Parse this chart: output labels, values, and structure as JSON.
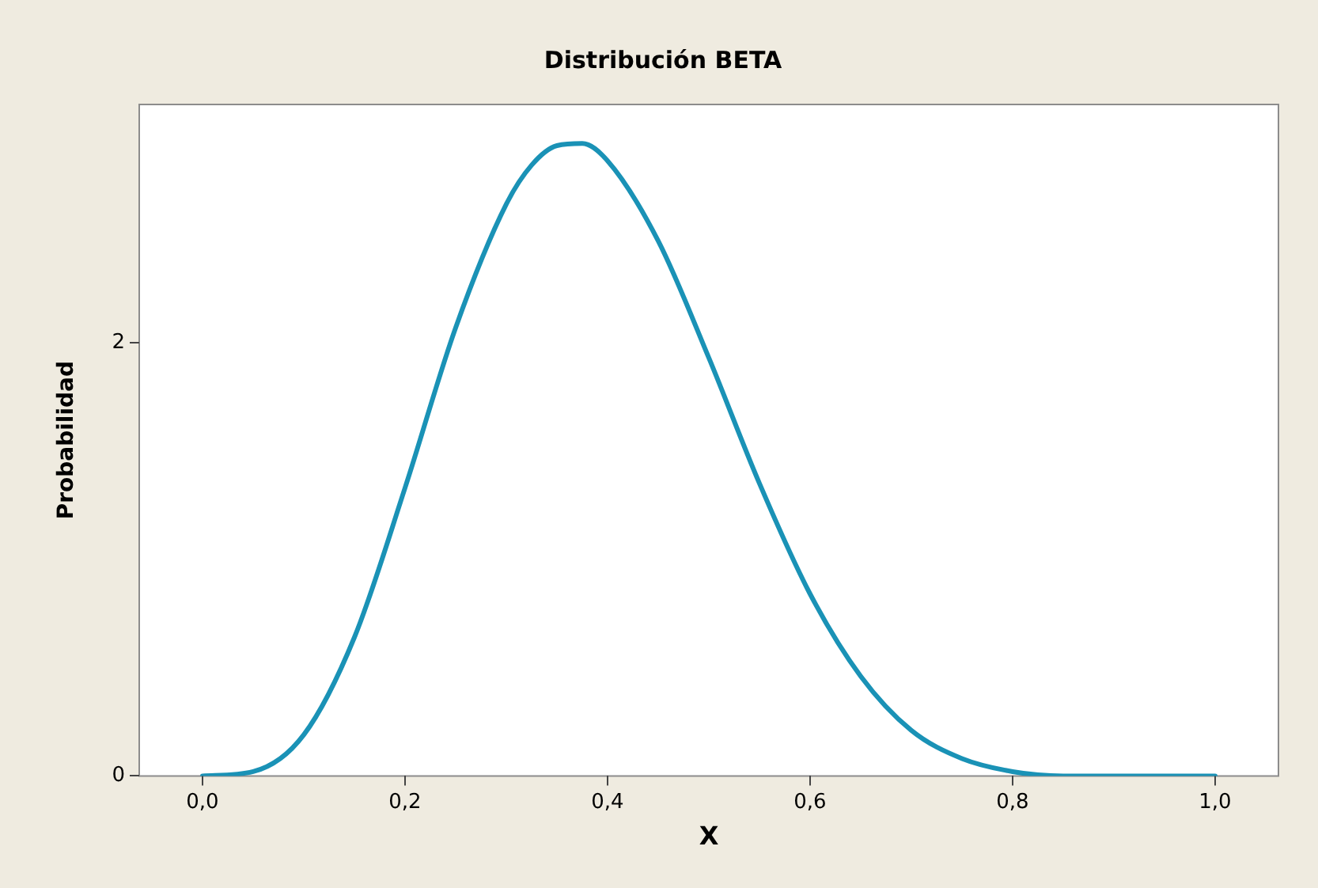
{
  "chart_data": {
    "type": "line",
    "title": "Distribución BETA",
    "xlabel": "X",
    "ylabel": "Probabilidad",
    "x": [
      0,
      0.05,
      0.1,
      0.15,
      0.2,
      0.25,
      0.3,
      0.325,
      0.35,
      0.375,
      0.4,
      0.45,
      0.5,
      0.55,
      0.6,
      0.65,
      0.7,
      0.75,
      0.8,
      0.85,
      0.9,
      0.95,
      1
    ],
    "series": [
      {
        "color": "#1a92b6",
        "values": [
          0,
          0.02,
          0.19,
          0.64,
          1.33,
          2.07,
          2.64,
          2.82,
          2.91,
          2.92,
          2.84,
          2.47,
          1.93,
          1.35,
          0.84,
          0.46,
          0.21,
          0.08,
          0.02,
          0,
          0,
          0,
          0
        ]
      }
    ],
    "xlim": [
      -0.0625,
      1.0625
    ],
    "ylim": [
      0,
      3.1
    ],
    "xticks": [
      {
        "value": 0,
        "label": "0,0"
      },
      {
        "value": 0.2,
        "label": "0,2"
      },
      {
        "value": 0.4,
        "label": "0,4"
      },
      {
        "value": 0.6,
        "label": "0,6"
      },
      {
        "value": 0.8,
        "label": "0,8"
      },
      {
        "value": 1,
        "label": "1,0"
      }
    ],
    "yticks": [
      0,
      2
    ],
    "grid": false,
    "legend": false,
    "marker": "none",
    "line_style": "solid"
  }
}
